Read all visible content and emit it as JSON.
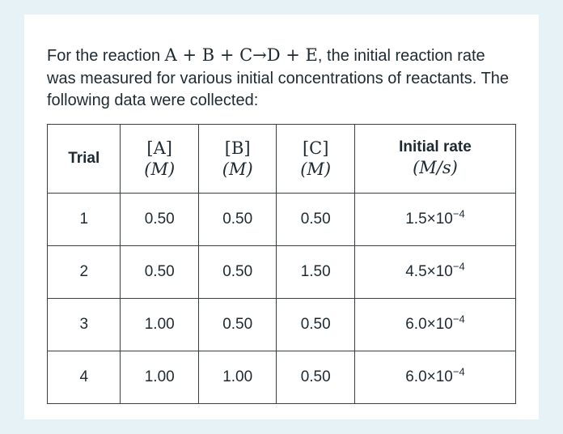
{
  "colors": {
    "page_background": "#e6f2f5",
    "card_background": "#ffffff",
    "text": "#1e2a32",
    "table_border": "#3a3f44"
  },
  "intro": {
    "pre": "For the reaction ",
    "reaction": "A + B + C→D + E",
    "post": ", the initial reaction rate was measured for various initial concentrations of reactants. The following data were collected:"
  },
  "table": {
    "trial_header": "Trial",
    "col_a_line1": "[A]",
    "col_a_line2": "(M)",
    "col_b_line1": "[B]",
    "col_b_line2": "(M)",
    "col_c_line1": "[C]",
    "col_c_line2": "(M)",
    "rate_header_line1": "Initial rate",
    "rate_header_line2": "(M/s)",
    "rows": [
      {
        "trial": "1",
        "a": "0.50",
        "b": "0.50",
        "c": "0.50",
        "rate_base": "1.5×10",
        "rate_exp": "−4"
      },
      {
        "trial": "2",
        "a": "0.50",
        "b": "0.50",
        "c": "1.50",
        "rate_base": "4.5×10",
        "rate_exp": "−4"
      },
      {
        "trial": "3",
        "a": "1.00",
        "b": "0.50",
        "c": "0.50",
        "rate_base": "6.0×10",
        "rate_exp": "−4"
      },
      {
        "trial": "4",
        "a": "1.00",
        "b": "1.00",
        "c": "0.50",
        "rate_base": "6.0×10",
        "rate_exp": "−4"
      }
    ]
  },
  "chart_data": {
    "type": "table",
    "title": "Initial rate data",
    "columns": [
      "Trial",
      "[A] (M)",
      "[B] (M)",
      "[C] (M)",
      "Initial rate (M/s)"
    ],
    "rows": [
      [
        "1",
        0.5,
        0.5,
        0.5,
        0.00015
      ],
      [
        "2",
        0.5,
        0.5,
        1.5,
        0.00045
      ],
      [
        "3",
        1.0,
        0.5,
        0.5,
        0.0006
      ],
      [
        "4",
        1.0,
        1.0,
        0.5,
        0.0006
      ]
    ]
  }
}
